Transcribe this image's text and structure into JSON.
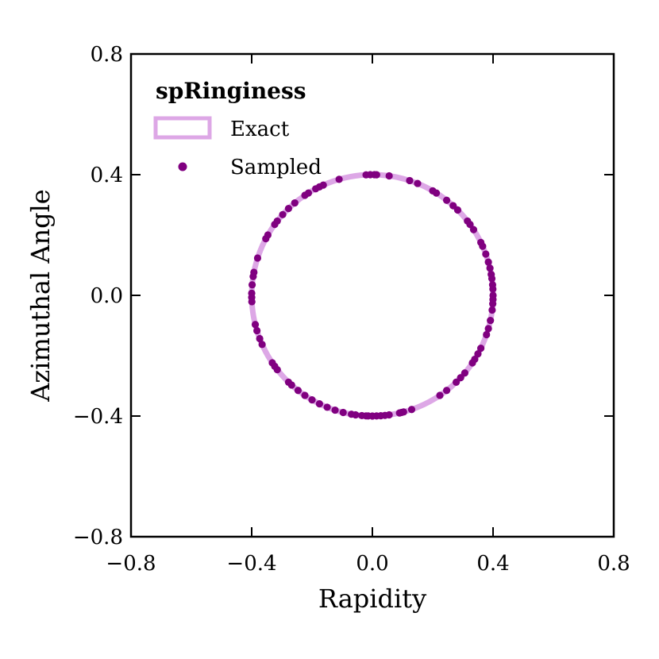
{
  "chart_data": {
    "type": "scatter",
    "title": "",
    "xlabel": "Rapidity",
    "ylabel": "Azimuthal Angle",
    "xlim": [
      -0.8,
      0.8
    ],
    "ylim": [
      -0.8,
      0.8
    ],
    "xticks": [
      -0.8,
      -0.4,
      0.0,
      0.4,
      0.8
    ],
    "yticks": [
      -0.8,
      -0.4,
      0.0,
      0.4,
      0.8
    ],
    "xtick_labels": [
      "−0.8",
      "−0.4",
      "0.0",
      "0.4",
      "0.8"
    ],
    "ytick_labels": [
      "−0.8",
      "−0.4",
      "0.0",
      "0.4",
      "0.8"
    ],
    "grid": false,
    "legend": {
      "title": "spRinginess",
      "position": "top-left",
      "entries": [
        "Exact",
        "Sampled"
      ]
    },
    "exact": {
      "name": "Exact",
      "shape": "circle",
      "center": [
        0.0,
        0.0
      ],
      "radius": 0.4,
      "color": "#dda7e6"
    },
    "sampled": {
      "name": "Sampled",
      "color": "#800080",
      "angles_deg": [
        0,
        3,
        5,
        8,
        10,
        13,
        16,
        20,
        24,
        26,
        33,
        36,
        38,
        45,
        48,
        52,
        58,
        60,
        68,
        72,
        82,
        88,
        89,
        91,
        93,
        106,
        114,
        116,
        118,
        122,
        124,
        130,
        134,
        138,
        142,
        144,
        150,
        152,
        162,
        169,
        171,
        175,
        179,
        181,
        183,
        194,
        197,
        201,
        204,
        214,
        216,
        218,
        226,
        228,
        232,
        236,
        240,
        244,
        248,
        252,
        256,
        260,
        262,
        265,
        267,
        268,
        270,
        272,
        274,
        276,
        278,
        283,
        284,
        285,
        289,
        304,
        308,
        314,
        317,
        320,
        326,
        328,
        331,
        334,
        341,
        344,
        348,
        353,
        356,
        358
      ]
    }
  }
}
